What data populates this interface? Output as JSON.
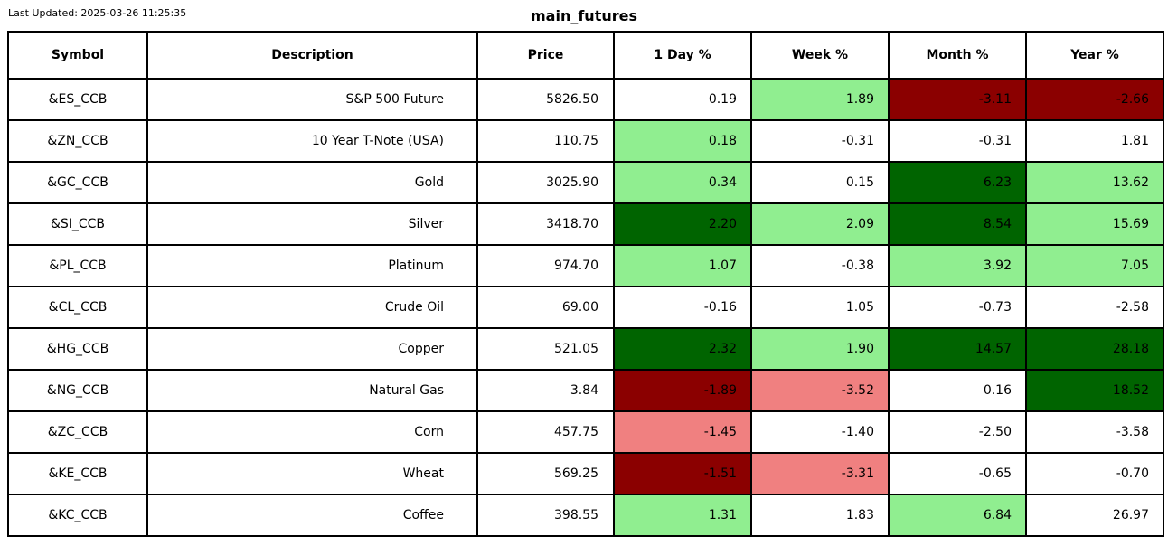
{
  "header": {
    "last_updated": "Last Updated: 2025-03-26 11:25:35",
    "title": "main_futures"
  },
  "colors": {
    "white": "#ffffff",
    "lightgreen": "#90ee90",
    "darkgreen": "#006400",
    "lightcoral": "#f08080",
    "darkred": "#8b0000",
    "border": "#000000",
    "text": "#000000"
  },
  "chart_data": {
    "type": "table",
    "title": "main_futures",
    "columns": [
      "Symbol",
      "Description",
      "Price",
      "1 Day %",
      "Week %",
      "Month %",
      "Year %"
    ],
    "rows": [
      {
        "symbol": "&ES_CCB",
        "description": "S&P 500 Future",
        "price": "5826.50",
        "pct": [
          {
            "value": "0.19",
            "bg": "white"
          },
          {
            "value": "1.89",
            "bg": "lightgreen"
          },
          {
            "value": "-3.11",
            "bg": "darkred"
          },
          {
            "value": "-2.66",
            "bg": "darkred"
          }
        ]
      },
      {
        "symbol": "&ZN_CCB",
        "description": "10 Year T-Note (USA)",
        "price": "110.75",
        "pct": [
          {
            "value": "0.18",
            "bg": "lightgreen"
          },
          {
            "value": "-0.31",
            "bg": "white"
          },
          {
            "value": "-0.31",
            "bg": "white"
          },
          {
            "value": "1.81",
            "bg": "white"
          }
        ]
      },
      {
        "symbol": "&GC_CCB",
        "description": "Gold",
        "price": "3025.90",
        "pct": [
          {
            "value": "0.34",
            "bg": "lightgreen"
          },
          {
            "value": "0.15",
            "bg": "white"
          },
          {
            "value": "6.23",
            "bg": "darkgreen"
          },
          {
            "value": "13.62",
            "bg": "lightgreen"
          }
        ]
      },
      {
        "symbol": "&SI_CCB",
        "description": "Silver",
        "price": "3418.70",
        "pct": [
          {
            "value": "2.20",
            "bg": "darkgreen"
          },
          {
            "value": "2.09",
            "bg": "lightgreen"
          },
          {
            "value": "8.54",
            "bg": "darkgreen"
          },
          {
            "value": "15.69",
            "bg": "lightgreen"
          }
        ]
      },
      {
        "symbol": "&PL_CCB",
        "description": "Platinum",
        "price": "974.70",
        "pct": [
          {
            "value": "1.07",
            "bg": "lightgreen"
          },
          {
            "value": "-0.38",
            "bg": "white"
          },
          {
            "value": "3.92",
            "bg": "lightgreen"
          },
          {
            "value": "7.05",
            "bg": "lightgreen"
          }
        ]
      },
      {
        "symbol": "&CL_CCB",
        "description": "Crude Oil",
        "price": "69.00",
        "pct": [
          {
            "value": "-0.16",
            "bg": "white"
          },
          {
            "value": "1.05",
            "bg": "white"
          },
          {
            "value": "-0.73",
            "bg": "white"
          },
          {
            "value": "-2.58",
            "bg": "white"
          }
        ]
      },
      {
        "symbol": "&HG_CCB",
        "description": "Copper",
        "price": "521.05",
        "pct": [
          {
            "value": "2.32",
            "bg": "darkgreen"
          },
          {
            "value": "1.90",
            "bg": "lightgreen"
          },
          {
            "value": "14.57",
            "bg": "darkgreen"
          },
          {
            "value": "28.18",
            "bg": "darkgreen"
          }
        ]
      },
      {
        "symbol": "&NG_CCB",
        "description": "Natural Gas",
        "price": "3.84",
        "pct": [
          {
            "value": "-1.89",
            "bg": "darkred"
          },
          {
            "value": "-3.52",
            "bg": "lightcoral"
          },
          {
            "value": "0.16",
            "bg": "white"
          },
          {
            "value": "18.52",
            "bg": "darkgreen"
          }
        ]
      },
      {
        "symbol": "&ZC_CCB",
        "description": "Corn",
        "price": "457.75",
        "pct": [
          {
            "value": "-1.45",
            "bg": "lightcoral"
          },
          {
            "value": "-1.40",
            "bg": "white"
          },
          {
            "value": "-2.50",
            "bg": "white"
          },
          {
            "value": "-3.58",
            "bg": "white"
          }
        ]
      },
      {
        "symbol": "&KE_CCB",
        "description": "Wheat",
        "price": "569.25",
        "pct": [
          {
            "value": "-1.51",
            "bg": "darkred"
          },
          {
            "value": "-3.31",
            "bg": "lightcoral"
          },
          {
            "value": "-0.65",
            "bg": "white"
          },
          {
            "value": "-0.70",
            "bg": "white"
          }
        ]
      },
      {
        "symbol": "&KC_CCB",
        "description": "Coffee",
        "price": "398.55",
        "pct": [
          {
            "value": "1.31",
            "bg": "lightgreen"
          },
          {
            "value": "1.83",
            "bg": "white"
          },
          {
            "value": "6.84",
            "bg": "lightgreen"
          },
          {
            "value": "26.97",
            "bg": "white"
          }
        ]
      }
    ]
  }
}
